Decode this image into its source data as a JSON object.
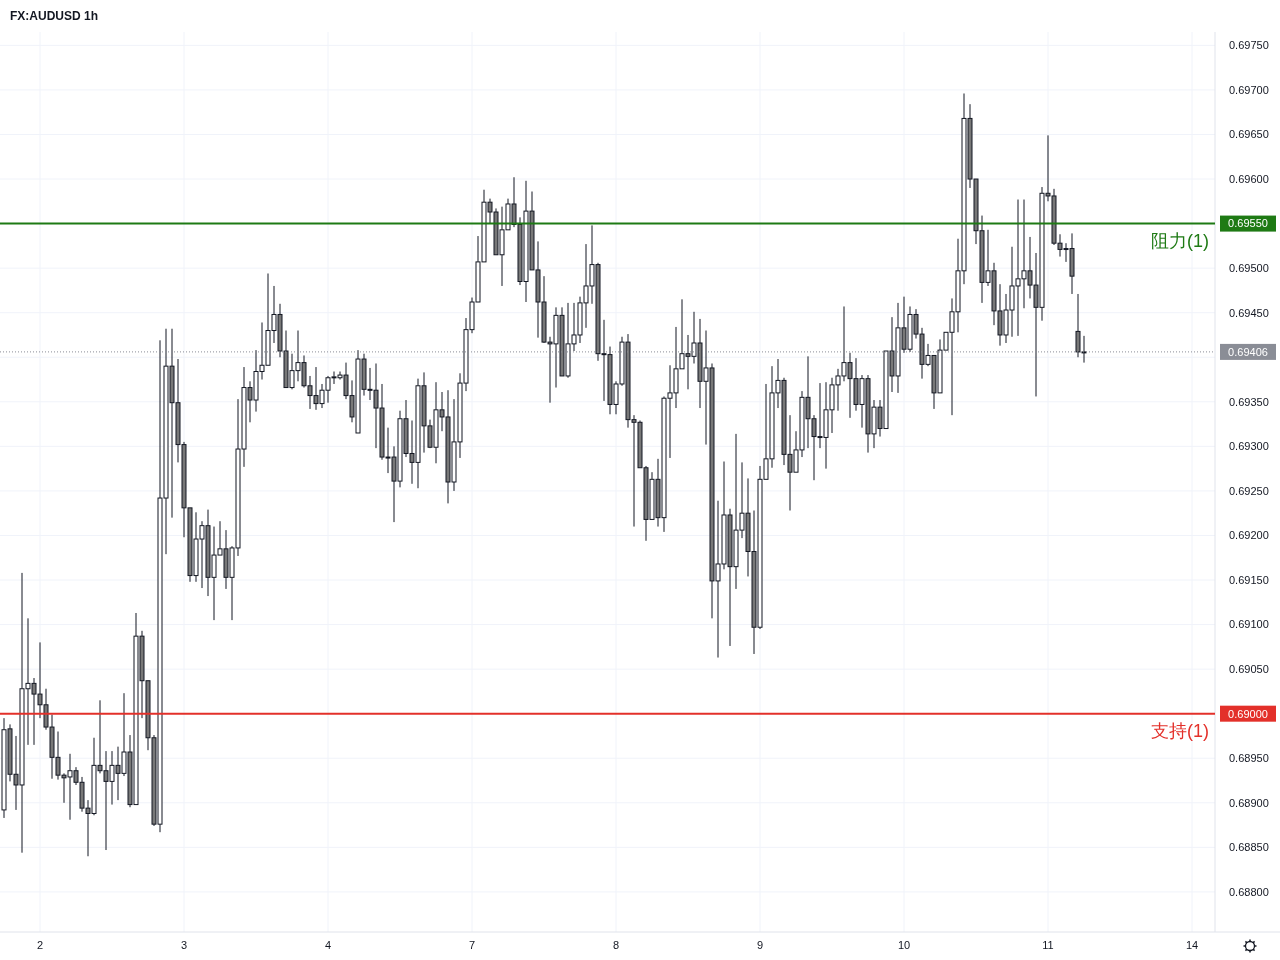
{
  "chart_data": {
    "type": "candlestick",
    "title": "FX:AUDUSD 1h",
    "categories": [
      null,
      null,
      null,
      null,
      null,
      null,
      "2",
      null,
      null,
      null,
      null,
      null,
      null,
      null,
      null,
      null,
      null,
      null,
      null,
      null,
      null,
      null,
      null,
      null,
      null,
      null,
      null,
      null,
      null,
      null,
      "3",
      null,
      null,
      null,
      null,
      null,
      null,
      null,
      null,
      null,
      null,
      null,
      null,
      null,
      null,
      null,
      null,
      null,
      null,
      null,
      null,
      null,
      null,
      null,
      "4",
      null,
      null,
      null,
      null,
      null,
      null,
      null,
      null,
      null,
      null,
      null,
      null,
      null,
      null,
      null,
      null,
      null,
      null,
      null,
      null,
      null,
      null,
      null,
      "7",
      null,
      null,
      null,
      null,
      null,
      null,
      null,
      null,
      null,
      null,
      null,
      null,
      null,
      null,
      null,
      null,
      null,
      null,
      null,
      null,
      null,
      null,
      null,
      "8",
      null,
      null,
      null,
      null,
      null,
      null,
      null,
      null,
      null,
      null,
      null,
      null,
      null,
      null,
      null,
      null,
      null,
      null,
      null,
      null,
      null,
      null,
      null,
      "9",
      null,
      null,
      null,
      null,
      null,
      null,
      null,
      null,
      null,
      null,
      null,
      null,
      null,
      null,
      null,
      null,
      null,
      null,
      null,
      null,
      null,
      null,
      null,
      "10",
      null,
      null,
      null,
      null,
      null,
      null,
      null,
      null,
      null,
      null,
      null,
      null,
      null,
      null,
      null,
      null,
      null,
      null,
      null,
      null,
      null,
      null,
      null,
      "11",
      null,
      null,
      null,
      null,
      null,
      null,
      null,
      null,
      null,
      null,
      null,
      null,
      null,
      null,
      null,
      null,
      null,
      null,
      null,
      null,
      null,
      null,
      null,
      "14",
      null,
      null,
      null
    ],
    "ohlc": [
      [
        0.68892,
        0.68995,
        0.68883,
        0.68982
      ],
      [
        0.68983,
        0.68988,
        0.68924,
        0.68932
      ],
      [
        0.68932,
        0.68975,
        0.68892,
        0.6892
      ],
      [
        0.6892,
        0.69158,
        0.68844,
        0.69028
      ],
      [
        0.69028,
        0.69107,
        0.68965,
        0.69034
      ],
      [
        0.69034,
        0.6904,
        0.68965,
        0.69022
      ],
      [
        0.69022,
        0.6908,
        0.68995,
        0.6901
      ],
      [
        0.6901,
        0.69028,
        0.68982,
        0.68985
      ],
      [
        0.68985,
        0.68999,
        0.68927,
        0.68951
      ],
      [
        0.68951,
        0.6898,
        0.68926,
        0.68931
      ],
      [
        0.68931,
        0.68933,
        0.689,
        0.68928
      ],
      [
        0.68929,
        0.68955,
        0.68881,
        0.68936
      ],
      [
        0.68936,
        0.6894,
        0.6892,
        0.68923
      ],
      [
        0.68923,
        0.68929,
        0.6889,
        0.68894
      ],
      [
        0.68894,
        0.68903,
        0.6884,
        0.68888
      ],
      [
        0.68888,
        0.68973,
        0.68886,
        0.68942
      ],
      [
        0.68942,
        0.69015,
        0.68933,
        0.68936
      ],
      [
        0.68936,
        0.68958,
        0.68847,
        0.68924
      ],
      [
        0.68924,
        0.68958,
        0.68898,
        0.68942
      ],
      [
        0.68942,
        0.68963,
        0.68903,
        0.68933
      ],
      [
        0.68933,
        0.69023,
        0.6893,
        0.68957
      ],
      [
        0.68957,
        0.68976,
        0.68895,
        0.68898
      ],
      [
        0.68898,
        0.69113,
        0.68898,
        0.69087
      ],
      [
        0.69087,
        0.69093,
        0.68995,
        0.69037
      ],
      [
        0.69037,
        0.69037,
        0.68959,
        0.68973
      ],
      [
        0.68973,
        0.68976,
        0.68874,
        0.68876
      ],
      [
        0.68876,
        0.69419,
        0.68867,
        0.69242
      ],
      [
        0.69242,
        0.69432,
        0.69179,
        0.6939
      ],
      [
        0.6939,
        0.69432,
        0.6922,
        0.69349
      ],
      [
        0.69349,
        0.69398,
        0.69282,
        0.69302
      ],
      [
        0.69302,
        0.69305,
        0.69198,
        0.69231
      ],
      [
        0.69231,
        0.69231,
        0.69148,
        0.69155
      ],
      [
        0.69155,
        0.69226,
        0.69148,
        0.69196
      ],
      [
        0.69196,
        0.69216,
        0.69141,
        0.69211
      ],
      [
        0.69211,
        0.69229,
        0.69132,
        0.69153
      ],
      [
        0.69153,
        0.6921,
        0.69105,
        0.69178
      ],
      [
        0.69178,
        0.69216,
        0.69178,
        0.69185
      ],
      [
        0.69185,
        0.69206,
        0.6914,
        0.69153
      ],
      [
        0.69153,
        0.69188,
        0.69105,
        0.69186
      ],
      [
        0.69186,
        0.69353,
        0.69177,
        0.69297
      ],
      [
        0.69297,
        0.69389,
        0.69277,
        0.69366
      ],
      [
        0.69366,
        0.69373,
        0.69327,
        0.69352
      ],
      [
        0.69352,
        0.69408,
        0.69339,
        0.69384
      ],
      [
        0.69384,
        0.69439,
        0.69375,
        0.69391
      ],
      [
        0.69391,
        0.69494,
        0.69391,
        0.6943
      ],
      [
        0.6943,
        0.6948,
        0.69416,
        0.69448
      ],
      [
        0.69448,
        0.6946,
        0.694,
        0.69407
      ],
      [
        0.69407,
        0.6943,
        0.69366,
        0.69366
      ],
      [
        0.69366,
        0.69404,
        0.69364,
        0.69385
      ],
      [
        0.69385,
        0.6943,
        0.69373,
        0.69394
      ],
      [
        0.69394,
        0.69402,
        0.69366,
        0.69368
      ],
      [
        0.69368,
        0.69379,
        0.69342,
        0.69357
      ],
      [
        0.69357,
        0.69389,
        0.69341,
        0.69348
      ],
      [
        0.69348,
        0.6937,
        0.69343,
        0.69363
      ],
      [
        0.69363,
        0.69379,
        0.69349,
        0.69377
      ],
      [
        0.69377,
        0.69384,
        0.6937,
        0.69378
      ],
      [
        0.69377,
        0.69384,
        0.69375,
        0.6938
      ],
      [
        0.6938,
        0.69394,
        0.69353,
        0.69357
      ],
      [
        0.69357,
        0.69374,
        0.69327,
        0.69333
      ],
      [
        0.69315,
        0.69408,
        0.69315,
        0.69398
      ],
      [
        0.69398,
        0.69404,
        0.69357,
        0.69364
      ],
      [
        0.69364,
        0.69388,
        0.69352,
        0.69363
      ],
      [
        0.69363,
        0.69393,
        0.69298,
        0.69343
      ],
      [
        0.69343,
        0.6937,
        0.69285,
        0.69288
      ],
      [
        0.69288,
        0.69321,
        0.6927,
        0.69287
      ],
      [
        0.69288,
        0.693,
        0.69215,
        0.69261
      ],
      [
        0.69261,
        0.6934,
        0.69254,
        0.69331
      ],
      [
        0.69331,
        0.69352,
        0.69288,
        0.69292
      ],
      [
        0.69292,
        0.69329,
        0.69258,
        0.69282
      ],
      [
        0.69282,
        0.69376,
        0.69253,
        0.69368
      ],
      [
        0.69368,
        0.69383,
        0.69293,
        0.69323
      ],
      [
        0.69323,
        0.6933,
        0.69298,
        0.69299
      ],
      [
        0.69299,
        0.69372,
        0.69281,
        0.69341
      ],
      [
        0.69341,
        0.69361,
        0.69317,
        0.69333
      ],
      [
        0.69333,
        0.69363,
        0.69236,
        0.6926
      ],
      [
        0.6926,
        0.69353,
        0.6925,
        0.69305
      ],
      [
        0.69305,
        0.69382,
        0.69287,
        0.69371
      ],
      [
        0.69371,
        0.69444,
        0.69362,
        0.69431
      ],
      [
        0.69431,
        0.69467,
        0.69427,
        0.69462
      ],
      [
        0.69462,
        0.69536,
        0.69462,
        0.69507
      ],
      [
        0.69507,
        0.69588,
        0.69507,
        0.69574
      ],
      [
        0.69574,
        0.69578,
        0.6955,
        0.69563
      ],
      [
        0.69563,
        0.69567,
        0.69515,
        0.69515
      ],
      [
        0.69515,
        0.69569,
        0.6948,
        0.69543
      ],
      [
        0.69543,
        0.69578,
        0.69543,
        0.69572
      ],
      [
        0.69572,
        0.69602,
        0.69546,
        0.69549
      ],
      [
        0.69549,
        0.69557,
        0.69481,
        0.69485
      ],
      [
        0.69485,
        0.69598,
        0.69462,
        0.69564
      ],
      [
        0.69564,
        0.69586,
        0.69498,
        0.69498
      ],
      [
        0.69498,
        0.6953,
        0.69422,
        0.69462
      ],
      [
        0.69462,
        0.69491,
        0.69416,
        0.69417
      ],
      [
        0.69417,
        0.69423,
        0.69349,
        0.69415
      ],
      [
        0.69415,
        0.69456,
        0.69366,
        0.69447
      ],
      [
        0.69447,
        0.69456,
        0.69379,
        0.69379
      ],
      [
        0.69379,
        0.69461,
        0.69377,
        0.69415
      ],
      [
        0.69415,
        0.69461,
        0.69407,
        0.69425
      ],
      [
        0.69425,
        0.69468,
        0.69416,
        0.69461
      ],
      [
        0.69461,
        0.69527,
        0.69433,
        0.6948
      ],
      [
        0.6948,
        0.69548,
        0.6946,
        0.69504
      ],
      [
        0.69504,
        0.69506,
        0.69396,
        0.69404
      ],
      [
        0.69404,
        0.69442,
        0.69351,
        0.69403
      ],
      [
        0.69403,
        0.69412,
        0.69336,
        0.69347
      ],
      [
        0.69347,
        0.69373,
        0.69336,
        0.6937
      ],
      [
        0.6937,
        0.69423,
        0.69368,
        0.69417
      ],
      [
        0.69417,
        0.69426,
        0.69321,
        0.6933
      ],
      [
        0.6933,
        0.69335,
        0.6921,
        0.69327
      ],
      [
        0.69327,
        0.69329,
        0.69276,
        0.69276
      ],
      [
        0.69276,
        0.69278,
        0.69194,
        0.69218
      ],
      [
        0.69218,
        0.69271,
        0.69218,
        0.69263
      ],
      [
        0.69263,
        0.69286,
        0.6921,
        0.6922
      ],
      [
        0.6922,
        0.69356,
        0.69204,
        0.69354
      ],
      [
        0.69354,
        0.69391,
        0.69287,
        0.6936
      ],
      [
        0.6936,
        0.69434,
        0.69343,
        0.69387
      ],
      [
        0.69387,
        0.69465,
        0.69387,
        0.69404
      ],
      [
        0.69404,
        0.69425,
        0.69364,
        0.69401
      ],
      [
        0.69401,
        0.69451,
        0.69393,
        0.69416
      ],
      [
        0.69416,
        0.69443,
        0.69343,
        0.69373
      ],
      [
        0.69373,
        0.6943,
        0.69302,
        0.69388
      ],
      [
        0.69388,
        0.69393,
        0.69107,
        0.69149
      ],
      [
        0.69149,
        0.69239,
        0.69063,
        0.69168
      ],
      [
        0.69168,
        0.69283,
        0.69162,
        0.69223
      ],
      [
        0.69223,
        0.6923,
        0.69076,
        0.69165
      ],
      [
        0.69165,
        0.69314,
        0.6914,
        0.69206
      ],
      [
        0.69206,
        0.69282,
        0.69197,
        0.69225
      ],
      [
        0.69225,
        0.69264,
        0.69154,
        0.69182
      ],
      [
        0.69182,
        0.69228,
        0.69067,
        0.69097
      ],
      [
        0.69097,
        0.69278,
        0.69095,
        0.69263
      ],
      [
        0.69263,
        0.6937,
        0.69263,
        0.69286
      ],
      [
        0.69286,
        0.6939,
        0.69276,
        0.6936
      ],
      [
        0.6936,
        0.69398,
        0.69343,
        0.69374
      ],
      [
        0.69374,
        0.69377,
        0.69279,
        0.69291
      ],
      [
        0.69291,
        0.69335,
        0.69228,
        0.69271
      ],
      [
        0.69271,
        0.69317,
        0.69271,
        0.69296
      ],
      [
        0.69296,
        0.69362,
        0.69288,
        0.69355
      ],
      [
        0.69355,
        0.69401,
        0.69298,
        0.69331
      ],
      [
        0.69331,
        0.69335,
        0.69262,
        0.69311
      ],
      [
        0.69311,
        0.69371,
        0.69298,
        0.6931
      ],
      [
        0.6931,
        0.69372,
        0.69275,
        0.69341
      ],
      [
        0.69341,
        0.69377,
        0.69315,
        0.69369
      ],
      [
        0.69369,
        0.69387,
        0.6934,
        0.69379
      ],
      [
        0.69379,
        0.69457,
        0.69373,
        0.69394
      ],
      [
        0.69394,
        0.69405,
        0.69332,
        0.69376
      ],
      [
        0.69376,
        0.69399,
        0.6934,
        0.69347
      ],
      [
        0.69347,
        0.6938,
        0.69321,
        0.69376
      ],
      [
        0.69376,
        0.6938,
        0.69293,
        0.69314
      ],
      [
        0.69314,
        0.69352,
        0.69298,
        0.69344
      ],
      [
        0.69344,
        0.69352,
        0.69311,
        0.6932
      ],
      [
        0.6932,
        0.69407,
        0.6932,
        0.69407
      ],
      [
        0.69407,
        0.69445,
        0.69361,
        0.69379
      ],
      [
        0.69379,
        0.69461,
        0.6936,
        0.69433
      ],
      [
        0.69433,
        0.69468,
        0.69405,
        0.69409
      ],
      [
        0.69409,
        0.69457,
        0.69406,
        0.69448
      ],
      [
        0.69448,
        0.69454,
        0.69421,
        0.69426
      ],
      [
        0.69426,
        0.69433,
        0.69376,
        0.69392
      ],
      [
        0.69392,
        0.69415,
        0.6939,
        0.69402
      ],
      [
        0.69402,
        0.69402,
        0.69342,
        0.6936
      ],
      [
        0.6936,
        0.6942,
        0.6936,
        0.69408
      ],
      [
        0.69408,
        0.69428,
        0.69408,
        0.69428
      ],
      [
        0.69428,
        0.69466,
        0.69335,
        0.69451
      ],
      [
        0.69451,
        0.69533,
        0.69428,
        0.69497
      ],
      [
        0.69497,
        0.69696,
        0.69482,
        0.69668
      ],
      [
        0.69668,
        0.69684,
        0.6959,
        0.696
      ],
      [
        0.696,
        0.696,
        0.69527,
        0.69542
      ],
      [
        0.69542,
        0.69559,
        0.69461,
        0.69484
      ],
      [
        0.69484,
        0.69543,
        0.6948,
        0.69497
      ],
      [
        0.69497,
        0.69506,
        0.69436,
        0.69452
      ],
      [
        0.69452,
        0.69482,
        0.69413,
        0.69425
      ],
      [
        0.69425,
        0.69471,
        0.69416,
        0.69453
      ],
      [
        0.69453,
        0.69524,
        0.69423,
        0.6948
      ],
      [
        0.6948,
        0.69577,
        0.69424,
        0.69488
      ],
      [
        0.69488,
        0.69577,
        0.69455,
        0.69497
      ],
      [
        0.69497,
        0.69535,
        0.69466,
        0.69481
      ],
      [
        0.69481,
        0.69517,
        0.69356,
        0.69456
      ],
      [
        0.69456,
        0.69591,
        0.69441,
        0.69584
      ],
      [
        0.69584,
        0.69649,
        0.69575,
        0.69581
      ],
      [
        0.69581,
        0.69589,
        0.69526,
        0.69528
      ],
      [
        0.69528,
        0.69538,
        0.69513,
        0.69521
      ],
      [
        0.69522,
        0.69528,
        0.69507,
        0.69521
      ],
      [
        0.69522,
        0.69539,
        0.69471,
        0.69491
      ],
      [
        0.69429,
        0.69471,
        0.694,
        0.69406
      ],
      [
        0.69406,
        0.69424,
        0.69394,
        0.69406
      ],
      null,
      null,
      null,
      null,
      null,
      null,
      null,
      null,
      null,
      null,
      null,
      null,
      null,
      null,
      null,
      null,
      null,
      null,
      null,
      null,
      null
    ],
    "ylim": [
      0.68755,
      0.69765
    ],
    "yticks": [
      {
        "value": 0.688,
        "label": "0.68800"
      },
      {
        "value": 0.6885,
        "label": "0.68850"
      },
      {
        "value": 0.689,
        "label": "0.68900"
      },
      {
        "value": 0.6895,
        "label": "0.68950"
      },
      {
        "value": 0.69,
        "label": "0.69000"
      },
      {
        "value": 0.6905,
        "label": "0.69050"
      },
      {
        "value": 0.691,
        "label": "0.69100"
      },
      {
        "value": 0.6915,
        "label": "0.69150"
      },
      {
        "value": 0.692,
        "label": "0.69200"
      },
      {
        "value": 0.6925,
        "label": "0.69250"
      },
      {
        "value": 0.693,
        "label": "0.69300"
      },
      {
        "value": 0.6935,
        "label": "0.69350"
      },
      {
        "value": 0.694,
        "label": null
      },
      {
        "value": 0.6945,
        "label": "0.69450"
      },
      {
        "value": 0.695,
        "label": "0.69500"
      },
      {
        "value": 0.6955,
        "label": "0.69550"
      },
      {
        "value": 0.696,
        "label": "0.69600"
      },
      {
        "value": 0.6965,
        "label": "0.69650"
      },
      {
        "value": 0.697,
        "label": "0.69700"
      },
      {
        "value": 0.6975,
        "label": "0.69750"
      }
    ],
    "ref_lines": [
      {
        "axis": "y",
        "value": 0.6955,
        "label": "阻力(1)",
        "color": "#1e7a14"
      },
      {
        "axis": "y",
        "value": 0.69,
        "label": "支持(1)",
        "color": "#e3302a"
      },
      {
        "axis": "y",
        "value": 0.69406,
        "label": "0.69406",
        "color": "#8a8d96",
        "line_style": "dotted"
      }
    ],
    "grid": true
  }
}
